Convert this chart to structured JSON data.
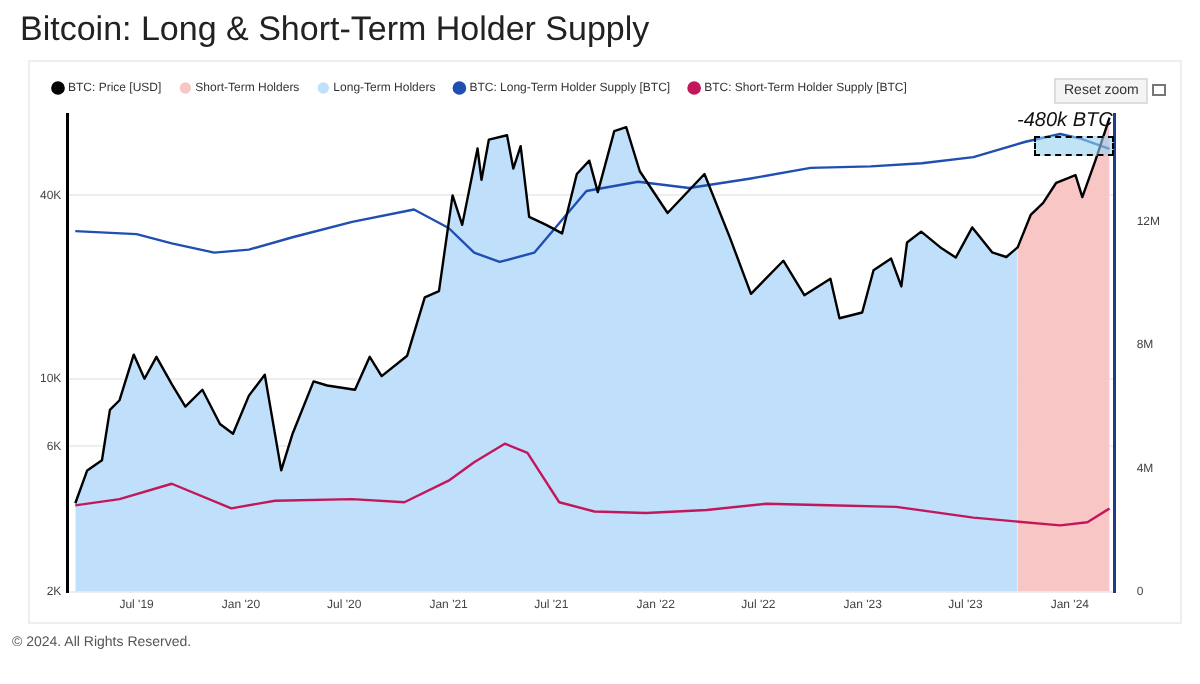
{
  "chart_data": {
    "type": "line",
    "title": "Bitcoin: Long & Short-Term Holder Supply",
    "x": [
      "2019-03-15",
      "2019-04-05",
      "2019-05-01",
      "2019-05-15",
      "2019-06-01",
      "2019-06-26",
      "2019-07-15",
      "2019-08-05",
      "2019-09-01",
      "2019-09-25",
      "2019-10-25",
      "2019-11-25",
      "2019-12-18",
      "2020-01-15",
      "2020-02-12",
      "2020-03-12",
      "2020-04-01",
      "2020-05-08",
      "2020-06-01",
      "2020-07-20",
      "2020-08-15",
      "2020-09-05",
      "2020-10-20",
      "2020-11-20",
      "2020-12-15",
      "2021-01-08",
      "2021-01-25",
      "2021-02-21",
      "2021-02-28",
      "2021-03-13",
      "2021-04-14",
      "2021-04-25",
      "2021-05-08",
      "2021-05-23",
      "2021-06-22",
      "2021-07-20",
      "2021-08-15",
      "2021-09-06",
      "2021-09-21",
      "2021-10-20",
      "2021-11-10",
      "2021-12-04",
      "2022-01-22",
      "2022-03-28",
      "2022-05-12",
      "2022-06-18",
      "2022-08-14",
      "2022-09-20",
      "2022-11-05",
      "2022-11-21",
      "2022-12-31",
      "2023-01-20",
      "2023-02-20",
      "2023-03-10",
      "2023-03-20",
      "2023-04-14",
      "2023-05-20",
      "2023-06-14",
      "2023-07-13",
      "2023-08-17",
      "2023-09-11",
      "2023-10-01",
      "2023-10-24",
      "2023-11-15",
      "2023-12-08",
      "2024-01-11",
      "2024-01-23",
      "2024-02-15",
      "2024-03-11"
    ],
    "series": [
      {
        "name": "BTC: Price [USD]",
        "color": "#000000",
        "values": [
          3900,
          5000,
          5400,
          7900,
          8500,
          12000,
          10000,
          11800,
          9600,
          8100,
          9200,
          7100,
          6600,
          8800,
          10300,
          5000,
          6600,
          9800,
          9500,
          9200,
          11800,
          10200,
          11900,
          18500,
          19400,
          40000,
          32000,
          57000,
          45000,
          61000,
          63000,
          49000,
          58000,
          34000,
          32000,
          30000,
          47000,
          52000,
          41000,
          65000,
          67000,
          48000,
          35000,
          47000,
          29000,
          19000,
          24400,
          18800,
          21300,
          15800,
          16500,
          22700,
          24800,
          20100,
          28000,
          30400,
          26800,
          25000,
          31400,
          26000,
          25100,
          27000,
          34500,
          37800,
          44000,
          46600,
          39500,
          52000,
          72000
        ]
      },
      {
        "name": "Short-Term Holders",
        "type": "area",
        "color": "#f9c6c6",
        "values": [
          null,
          null,
          null,
          null,
          null,
          null,
          null,
          null,
          null,
          null,
          null,
          null,
          null,
          null,
          null,
          null,
          null,
          null,
          null,
          null,
          null,
          null,
          null,
          null,
          null,
          null,
          null,
          null,
          null,
          null,
          null,
          null,
          null,
          null,
          null,
          null,
          null,
          null,
          null,
          null,
          null,
          null,
          null,
          null,
          null,
          null,
          null,
          null,
          null,
          null,
          null,
          null,
          null,
          null,
          null,
          null,
          null,
          null,
          null,
          null,
          null,
          27000,
          34500,
          37800,
          44000,
          46600,
          39500,
          52000,
          72000
        ]
      },
      {
        "name": "Long-Term Holders",
        "type": "area",
        "color": "#bfdffa",
        "values": [
          3900,
          5000,
          5400,
          7900,
          8500,
          12000,
          10000,
          11800,
          9600,
          8100,
          9200,
          7100,
          6600,
          8800,
          10300,
          5000,
          6600,
          9800,
          9500,
          9200,
          11800,
          10200,
          11900,
          18500,
          19400,
          40000,
          32000,
          57000,
          45000,
          61000,
          63000,
          49000,
          58000,
          34000,
          32000,
          30000,
          47000,
          52000,
          41000,
          65000,
          67000,
          48000,
          35000,
          47000,
          29000,
          19000,
          24400,
          18800,
          21300,
          15800,
          16500,
          22700,
          24800,
          20100,
          28000,
          30400,
          26800,
          25000,
          31400,
          26000,
          25100,
          27000,
          null,
          null,
          null,
          null,
          null,
          null,
          null
        ]
      },
      {
        "name": "BTC: Long-Term Holder Supply [BTC]",
        "type": "line",
        "axis": "y2",
        "color": "#1f4fb0",
        "x": [
          "2019-03-15",
          "2019-07-01",
          "2019-09-01",
          "2019-11-15",
          "2020-01-15",
          "2020-04-01",
          "2020-07-15",
          "2020-11-01",
          "2021-01-01",
          "2021-02-15",
          "2021-04-01",
          "2021-06-01",
          "2021-09-01",
          "2021-12-01",
          "2022-03-01",
          "2022-06-15",
          "2022-10-01",
          "2023-01-15",
          "2023-04-15",
          "2023-07-15",
          "2023-10-15",
          "2023-12-15",
          "2024-01-20",
          "2024-03-11"
        ],
        "values": [
          11700000,
          11600000,
          11300000,
          11000000,
          11100000,
          11500000,
          12000000,
          12400000,
          11800000,
          11000000,
          10700000,
          11000000,
          13000000,
          13300000,
          13100000,
          13400000,
          13750000,
          13800000,
          13900000,
          14100000,
          14600000,
          14850000,
          14700000,
          14370000
        ]
      },
      {
        "name": "BTC: Short-Term Holder Supply [BTC]",
        "type": "line",
        "axis": "y2",
        "color": "#c2185b",
        "x": [
          "2019-03-15",
          "2019-06-01",
          "2019-09-01",
          "2019-12-15",
          "2020-03-01",
          "2020-07-15",
          "2020-10-15",
          "2021-01-01",
          "2021-02-15",
          "2021-04-10",
          "2021-05-20",
          "2021-07-15",
          "2021-09-15",
          "2021-12-15",
          "2022-04-01",
          "2022-07-15",
          "2022-11-01",
          "2023-03-01",
          "2023-07-15",
          "2023-12-15",
          "2024-02-01",
          "2024-03-11"
        ],
        "values": [
          2800000,
          3000000,
          3500000,
          2700000,
          2950000,
          3000000,
          2900000,
          3600000,
          4200000,
          4800000,
          4500000,
          2900000,
          2600000,
          2550000,
          2650000,
          2850000,
          2800000,
          2750000,
          2400000,
          2150000,
          2250000,
          2700000
        ]
      }
    ],
    "xlim": [
      "2019-03-01",
      "2024-03-20"
    ],
    "xticks": [
      {
        "value": "2019-07-01",
        "label": "Jul '19"
      },
      {
        "value": "2020-01-01",
        "label": "Jan '20"
      },
      {
        "value": "2020-07-01",
        "label": "Jul '20"
      },
      {
        "value": "2021-01-01",
        "label": "Jan '21"
      },
      {
        "value": "2021-07-01",
        "label": "Jul '21"
      },
      {
        "value": "2022-01-01",
        "label": "Jan '22"
      },
      {
        "value": "2022-07-01",
        "label": "Jul '22"
      },
      {
        "value": "2023-01-01",
        "label": "Jan '23"
      },
      {
        "value": "2023-07-01",
        "label": "Jul '23"
      },
      {
        "value": "2024-01-01",
        "label": "Jan '24"
      }
    ],
    "ylim": [
      2000,
      74000
    ],
    "yticks": [
      {
        "value": 2000,
        "label": "2K"
      },
      {
        "value": 6000,
        "label": "6K"
      },
      {
        "value": 10000,
        "label": "10K"
      },
      {
        "value": 40000,
        "label": "40K"
      }
    ],
    "y2lim": [
      0,
      15500000
    ],
    "y2ticks": [
      0,
      {
        "value": 4000000,
        "label": "4M"
      },
      {
        "value": 8000000,
        "label": "8M"
      },
      {
        "value": 12000000,
        "label": "12M"
      }
    ],
    "log": "y",
    "grid": "y",
    "legend": "top left",
    "marker": "none",
    "annotations": [
      "-480k BTC",
      "Reset zoom",
      "© 2024. All Rights Reserved."
    ]
  }
}
